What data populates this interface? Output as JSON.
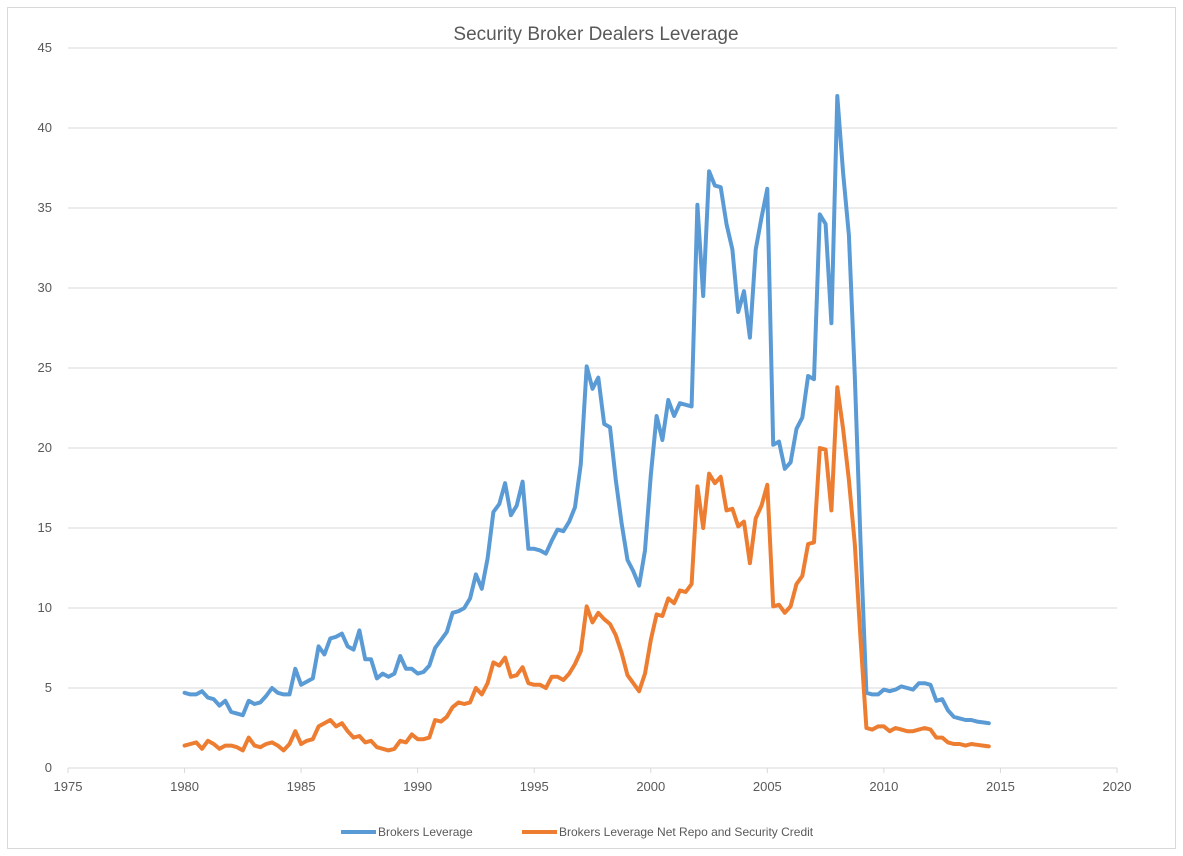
{
  "colors": {
    "series1": "#5B9BD5",
    "series2": "#ED7D31",
    "grid": "#d9d9d9",
    "text": "#595959"
  },
  "chart_data": {
    "type": "line",
    "title": "Security Broker Dealers Leverage",
    "xlabel": "",
    "ylabel": "",
    "xlim": [
      1975,
      2020
    ],
    "ylim": [
      0,
      45
    ],
    "xticks": [
      1975,
      1980,
      1985,
      1990,
      1995,
      2000,
      2005,
      2010,
      2015,
      2020
    ],
    "yticks": [
      0,
      5,
      10,
      15,
      20,
      25,
      30,
      35,
      40,
      45
    ],
    "grid": "horizontal",
    "legend_position": "bottom",
    "series": [
      {
        "name": "Brokers Leverage",
        "points": [
          [
            1980.0,
            4.7
          ],
          [
            1980.25,
            4.6
          ],
          [
            1980.5,
            4.6
          ],
          [
            1980.75,
            4.8
          ],
          [
            1981.0,
            4.4
          ],
          [
            1981.25,
            4.3
          ],
          [
            1981.5,
            3.9
          ],
          [
            1981.75,
            4.2
          ],
          [
            1982.0,
            3.5
          ],
          [
            1982.25,
            3.4
          ],
          [
            1982.5,
            3.3
          ],
          [
            1982.75,
            4.2
          ],
          [
            1983.0,
            4.0
          ],
          [
            1983.25,
            4.1
          ],
          [
            1983.5,
            4.5
          ],
          [
            1983.75,
            5.0
          ],
          [
            1984.0,
            4.7
          ],
          [
            1984.25,
            4.6
          ],
          [
            1984.5,
            4.6
          ],
          [
            1984.75,
            6.2
          ],
          [
            1985.0,
            5.2
          ],
          [
            1985.25,
            5.4
          ],
          [
            1985.5,
            5.6
          ],
          [
            1985.75,
            7.6
          ],
          [
            1986.0,
            7.1
          ],
          [
            1986.25,
            8.1
          ],
          [
            1986.5,
            8.2
          ],
          [
            1986.75,
            8.4
          ],
          [
            1987.0,
            7.6
          ],
          [
            1987.25,
            7.4
          ],
          [
            1987.5,
            8.6
          ],
          [
            1987.75,
            6.8
          ],
          [
            1988.0,
            6.8
          ],
          [
            1988.25,
            5.6
          ],
          [
            1988.5,
            5.9
          ],
          [
            1988.75,
            5.7
          ],
          [
            1989.0,
            5.9
          ],
          [
            1989.25,
            7.0
          ],
          [
            1989.5,
            6.2
          ],
          [
            1989.75,
            6.2
          ],
          [
            1990.0,
            5.9
          ],
          [
            1990.25,
            6.0
          ],
          [
            1990.5,
            6.4
          ],
          [
            1990.75,
            7.5
          ],
          [
            1991.0,
            8.0
          ],
          [
            1991.25,
            8.5
          ],
          [
            1991.5,
            9.7
          ],
          [
            1991.75,
            9.8
          ],
          [
            1992.0,
            10.0
          ],
          [
            1992.25,
            10.6
          ],
          [
            1992.5,
            12.1
          ],
          [
            1992.75,
            11.2
          ],
          [
            1993.0,
            13.1
          ],
          [
            1993.25,
            16.0
          ],
          [
            1993.5,
            16.5
          ],
          [
            1993.75,
            17.8
          ],
          [
            1994.0,
            15.8
          ],
          [
            1994.25,
            16.4
          ],
          [
            1994.5,
            17.9
          ],
          [
            1994.75,
            13.7
          ],
          [
            1995.0,
            13.7
          ],
          [
            1995.25,
            13.6
          ],
          [
            1995.5,
            13.4
          ],
          [
            1995.75,
            14.2
          ],
          [
            1996.0,
            14.9
          ],
          [
            1996.25,
            14.8
          ],
          [
            1996.5,
            15.4
          ],
          [
            1996.75,
            16.3
          ],
          [
            1997.0,
            19.0
          ],
          [
            1997.25,
            25.1
          ],
          [
            1997.5,
            23.7
          ],
          [
            1997.75,
            24.4
          ],
          [
            1998.0,
            21.5
          ],
          [
            1998.25,
            21.3
          ],
          [
            1998.5,
            18.0
          ],
          [
            1998.75,
            15.3
          ],
          [
            1999.0,
            13.0
          ],
          [
            1999.25,
            12.3
          ],
          [
            1999.5,
            11.4
          ],
          [
            1999.75,
            13.6
          ],
          [
            2000.0,
            18.3
          ],
          [
            2000.25,
            22.0
          ],
          [
            2000.5,
            20.5
          ],
          [
            2000.75,
            23.0
          ],
          [
            2001.0,
            22.0
          ],
          [
            2001.25,
            22.8
          ],
          [
            2001.5,
            22.7
          ],
          [
            2001.75,
            22.6
          ],
          [
            2002.0,
            35.2
          ],
          [
            2002.25,
            29.5
          ],
          [
            2002.5,
            37.3
          ],
          [
            2002.75,
            36.4
          ],
          [
            2003.0,
            36.3
          ],
          [
            2003.25,
            34.0
          ],
          [
            2003.5,
            32.4
          ],
          [
            2003.75,
            28.5
          ],
          [
            2004.0,
            29.8
          ],
          [
            2004.25,
            26.9
          ],
          [
            2004.5,
            32.4
          ],
          [
            2004.75,
            34.4
          ],
          [
            2005.0,
            36.2
          ],
          [
            2005.25,
            20.2
          ],
          [
            2005.5,
            20.4
          ],
          [
            2005.75,
            18.7
          ],
          [
            2006.0,
            19.1
          ],
          [
            2006.25,
            21.2
          ],
          [
            2006.5,
            21.9
          ],
          [
            2006.75,
            24.5
          ],
          [
            2007.0,
            24.3
          ],
          [
            2007.25,
            34.6
          ],
          [
            2007.5,
            34.0
          ],
          [
            2007.75,
            27.8
          ],
          [
            2008.0,
            42.0
          ],
          [
            2008.25,
            37.2
          ],
          [
            2008.5,
            33.3
          ],
          [
            2008.75,
            24.5
          ],
          [
            2009.0,
            14.0
          ],
          [
            2009.25,
            4.7
          ],
          [
            2009.5,
            4.6
          ],
          [
            2009.75,
            4.6
          ],
          [
            2010.0,
            4.9
          ],
          [
            2010.25,
            4.8
          ],
          [
            2010.5,
            4.9
          ],
          [
            2010.75,
            5.1
          ],
          [
            2011.0,
            5.0
          ],
          [
            2011.25,
            4.9
          ],
          [
            2011.5,
            5.3
          ],
          [
            2011.75,
            5.3
          ],
          [
            2012.0,
            5.2
          ],
          [
            2012.25,
            4.2
          ],
          [
            2012.5,
            4.3
          ],
          [
            2012.75,
            3.6
          ],
          [
            2013.0,
            3.2
          ],
          [
            2013.25,
            3.1
          ],
          [
            2013.5,
            3.0
          ],
          [
            2013.75,
            3.0
          ],
          [
            2014.0,
            2.9
          ],
          [
            2014.25,
            2.85
          ],
          [
            2014.5,
            2.8
          ]
        ]
      },
      {
        "name": "Brokers Leverage Net Repo and Security Credit",
        "points": [
          [
            1980.0,
            1.4
          ],
          [
            1980.25,
            1.5
          ],
          [
            1980.5,
            1.6
          ],
          [
            1980.75,
            1.2
          ],
          [
            1981.0,
            1.7
          ],
          [
            1981.25,
            1.5
          ],
          [
            1981.5,
            1.2
          ],
          [
            1981.75,
            1.4
          ],
          [
            1982.0,
            1.4
          ],
          [
            1982.25,
            1.3
          ],
          [
            1982.5,
            1.1
          ],
          [
            1982.75,
            1.9
          ],
          [
            1983.0,
            1.4
          ],
          [
            1983.25,
            1.3
          ],
          [
            1983.5,
            1.5
          ],
          [
            1983.75,
            1.6
          ],
          [
            1984.0,
            1.4
          ],
          [
            1984.25,
            1.1
          ],
          [
            1984.5,
            1.5
          ],
          [
            1984.75,
            2.3
          ],
          [
            1985.0,
            1.5
          ],
          [
            1985.25,
            1.7
          ],
          [
            1985.5,
            1.8
          ],
          [
            1985.75,
            2.6
          ],
          [
            1986.0,
            2.8
          ],
          [
            1986.25,
            3.0
          ],
          [
            1986.5,
            2.6
          ],
          [
            1986.75,
            2.8
          ],
          [
            1987.0,
            2.3
          ],
          [
            1987.25,
            1.9
          ],
          [
            1987.5,
            2.0
          ],
          [
            1987.75,
            1.6
          ],
          [
            1988.0,
            1.7
          ],
          [
            1988.25,
            1.3
          ],
          [
            1988.5,
            1.2
          ],
          [
            1988.75,
            1.1
          ],
          [
            1989.0,
            1.2
          ],
          [
            1989.25,
            1.7
          ],
          [
            1989.5,
            1.6
          ],
          [
            1989.75,
            2.1
          ],
          [
            1990.0,
            1.8
          ],
          [
            1990.25,
            1.8
          ],
          [
            1990.5,
            1.9
          ],
          [
            1990.75,
            3.0
          ],
          [
            1991.0,
            2.9
          ],
          [
            1991.25,
            3.2
          ],
          [
            1991.5,
            3.8
          ],
          [
            1991.75,
            4.1
          ],
          [
            1992.0,
            4.0
          ],
          [
            1992.25,
            4.1
          ],
          [
            1992.5,
            5.0
          ],
          [
            1992.75,
            4.6
          ],
          [
            1993.0,
            5.3
          ],
          [
            1993.25,
            6.6
          ],
          [
            1993.5,
            6.4
          ],
          [
            1993.75,
            6.9
          ],
          [
            1994.0,
            5.7
          ],
          [
            1994.25,
            5.8
          ],
          [
            1994.5,
            6.3
          ],
          [
            1994.75,
            5.3
          ],
          [
            1995.0,
            5.2
          ],
          [
            1995.25,
            5.2
          ],
          [
            1995.5,
            5.0
          ],
          [
            1995.75,
            5.7
          ],
          [
            1996.0,
            5.7
          ],
          [
            1996.25,
            5.5
          ],
          [
            1996.5,
            5.9
          ],
          [
            1996.75,
            6.5
          ],
          [
            1997.0,
            7.3
          ],
          [
            1997.25,
            10.1
          ],
          [
            1997.5,
            9.1
          ],
          [
            1997.75,
            9.7
          ],
          [
            1998.0,
            9.3
          ],
          [
            1998.25,
            9.0
          ],
          [
            1998.5,
            8.3
          ],
          [
            1998.75,
            7.2
          ],
          [
            1999.0,
            5.8
          ],
          [
            1999.25,
            5.3
          ],
          [
            1999.5,
            4.8
          ],
          [
            1999.75,
            5.9
          ],
          [
            2000.0,
            8.0
          ],
          [
            2000.25,
            9.6
          ],
          [
            2000.5,
            9.5
          ],
          [
            2000.75,
            10.6
          ],
          [
            2001.0,
            10.3
          ],
          [
            2001.25,
            11.1
          ],
          [
            2001.5,
            11.0
          ],
          [
            2001.75,
            11.5
          ],
          [
            2002.0,
            17.6
          ],
          [
            2002.25,
            15.0
          ],
          [
            2002.5,
            18.4
          ],
          [
            2002.75,
            17.8
          ],
          [
            2003.0,
            18.2
          ],
          [
            2003.25,
            16.1
          ],
          [
            2003.5,
            16.2
          ],
          [
            2003.75,
            15.1
          ],
          [
            2004.0,
            15.4
          ],
          [
            2004.25,
            12.8
          ],
          [
            2004.5,
            15.6
          ],
          [
            2004.75,
            16.4
          ],
          [
            2005.0,
            17.7
          ],
          [
            2005.25,
            10.1
          ],
          [
            2005.5,
            10.2
          ],
          [
            2005.75,
            9.7
          ],
          [
            2006.0,
            10.1
          ],
          [
            2006.25,
            11.5
          ],
          [
            2006.5,
            12.0
          ],
          [
            2006.75,
            14.0
          ],
          [
            2007.0,
            14.1
          ],
          [
            2007.25,
            20.0
          ],
          [
            2007.5,
            19.9
          ],
          [
            2007.75,
            16.1
          ],
          [
            2008.0,
            23.8
          ],
          [
            2008.25,
            21.2
          ],
          [
            2008.5,
            18.0
          ],
          [
            2008.75,
            14.0
          ],
          [
            2009.0,
            8.0
          ],
          [
            2009.25,
            2.5
          ],
          [
            2009.5,
            2.4
          ],
          [
            2009.75,
            2.6
          ],
          [
            2010.0,
            2.6
          ],
          [
            2010.25,
            2.3
          ],
          [
            2010.5,
            2.5
          ],
          [
            2010.75,
            2.4
          ],
          [
            2011.0,
            2.3
          ],
          [
            2011.25,
            2.3
          ],
          [
            2011.5,
            2.4
          ],
          [
            2011.75,
            2.5
          ],
          [
            2012.0,
            2.4
          ],
          [
            2012.25,
            1.9
          ],
          [
            2012.5,
            1.9
          ],
          [
            2012.75,
            1.6
          ],
          [
            2013.0,
            1.5
          ],
          [
            2013.25,
            1.5
          ],
          [
            2013.5,
            1.4
          ],
          [
            2013.75,
            1.5
          ],
          [
            2014.0,
            1.45
          ],
          [
            2014.25,
            1.4
          ],
          [
            2014.5,
            1.35
          ]
        ]
      }
    ]
  }
}
